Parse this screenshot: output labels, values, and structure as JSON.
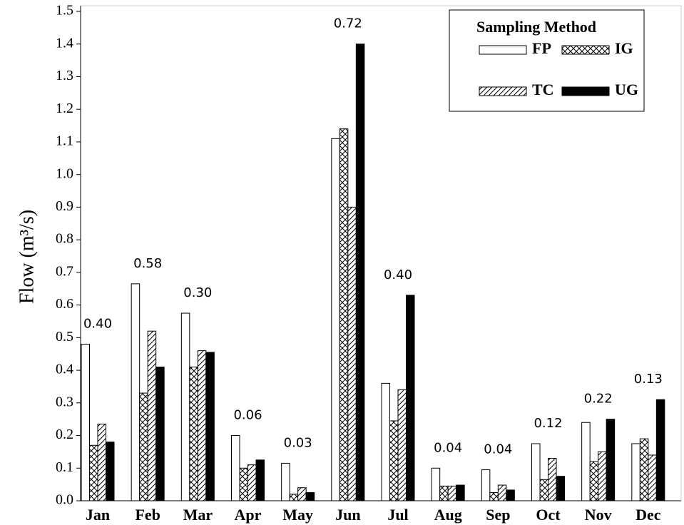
{
  "chart_data": {
    "type": "bar",
    "y_label": "Flow (m³/s)",
    "legend_title": "Sampling Method",
    "legend_position": "upper right",
    "categories": [
      "Jan",
      "Feb",
      "Mar",
      "Apr",
      "May",
      "Jun",
      "Jul",
      "Aug",
      "Sep",
      "Oct",
      "Nov",
      "Dec"
    ],
    "group_labels": [
      "0.40",
      "0.58",
      "0.30",
      "0.06",
      "0.03",
      "0.72",
      "0.40",
      "0.04",
      "0.04",
      "0.12",
      "0.22",
      "0.13"
    ],
    "series": [
      {
        "name": "FP",
        "color": "#ffffff",
        "pattern": "none",
        "values": [
          0.48,
          0.665,
          0.575,
          0.2,
          0.115,
          1.11,
          0.36,
          0.1,
          0.095,
          0.175,
          0.24,
          0.175
        ]
      },
      {
        "name": "IG",
        "color": "#ffffff",
        "pattern": "cross",
        "values": [
          0.17,
          0.33,
          0.41,
          0.1,
          0.02,
          1.14,
          0.245,
          0.045,
          0.025,
          0.065,
          0.12,
          0.19
        ]
      },
      {
        "name": "TC",
        "color": "#ffffff",
        "pattern": "diagonal",
        "values": [
          0.235,
          0.52,
          0.46,
          0.11,
          0.04,
          0.9,
          0.34,
          0.045,
          0.048,
          0.13,
          0.15,
          0.14
        ]
      },
      {
        "name": "UG",
        "color": "#000000",
        "pattern": "none",
        "values": [
          0.18,
          0.41,
          0.455,
          0.125,
          0.025,
          1.4,
          0.63,
          0.048,
          0.033,
          0.075,
          0.25,
          0.31
        ]
      }
    ],
    "ylim": [
      0,
      1.5
    ],
    "yticks": [
      {
        "value": 0,
        "label": "0.0"
      },
      0.1,
      0.2,
      0.3,
      0.4,
      0.5,
      0.6,
      0.7,
      0.8,
      0.9,
      {
        "value": 1,
        "label": "1.0"
      },
      1.1,
      1.2,
      1.3,
      1.4,
      1.5
    ],
    "grid": false
  }
}
